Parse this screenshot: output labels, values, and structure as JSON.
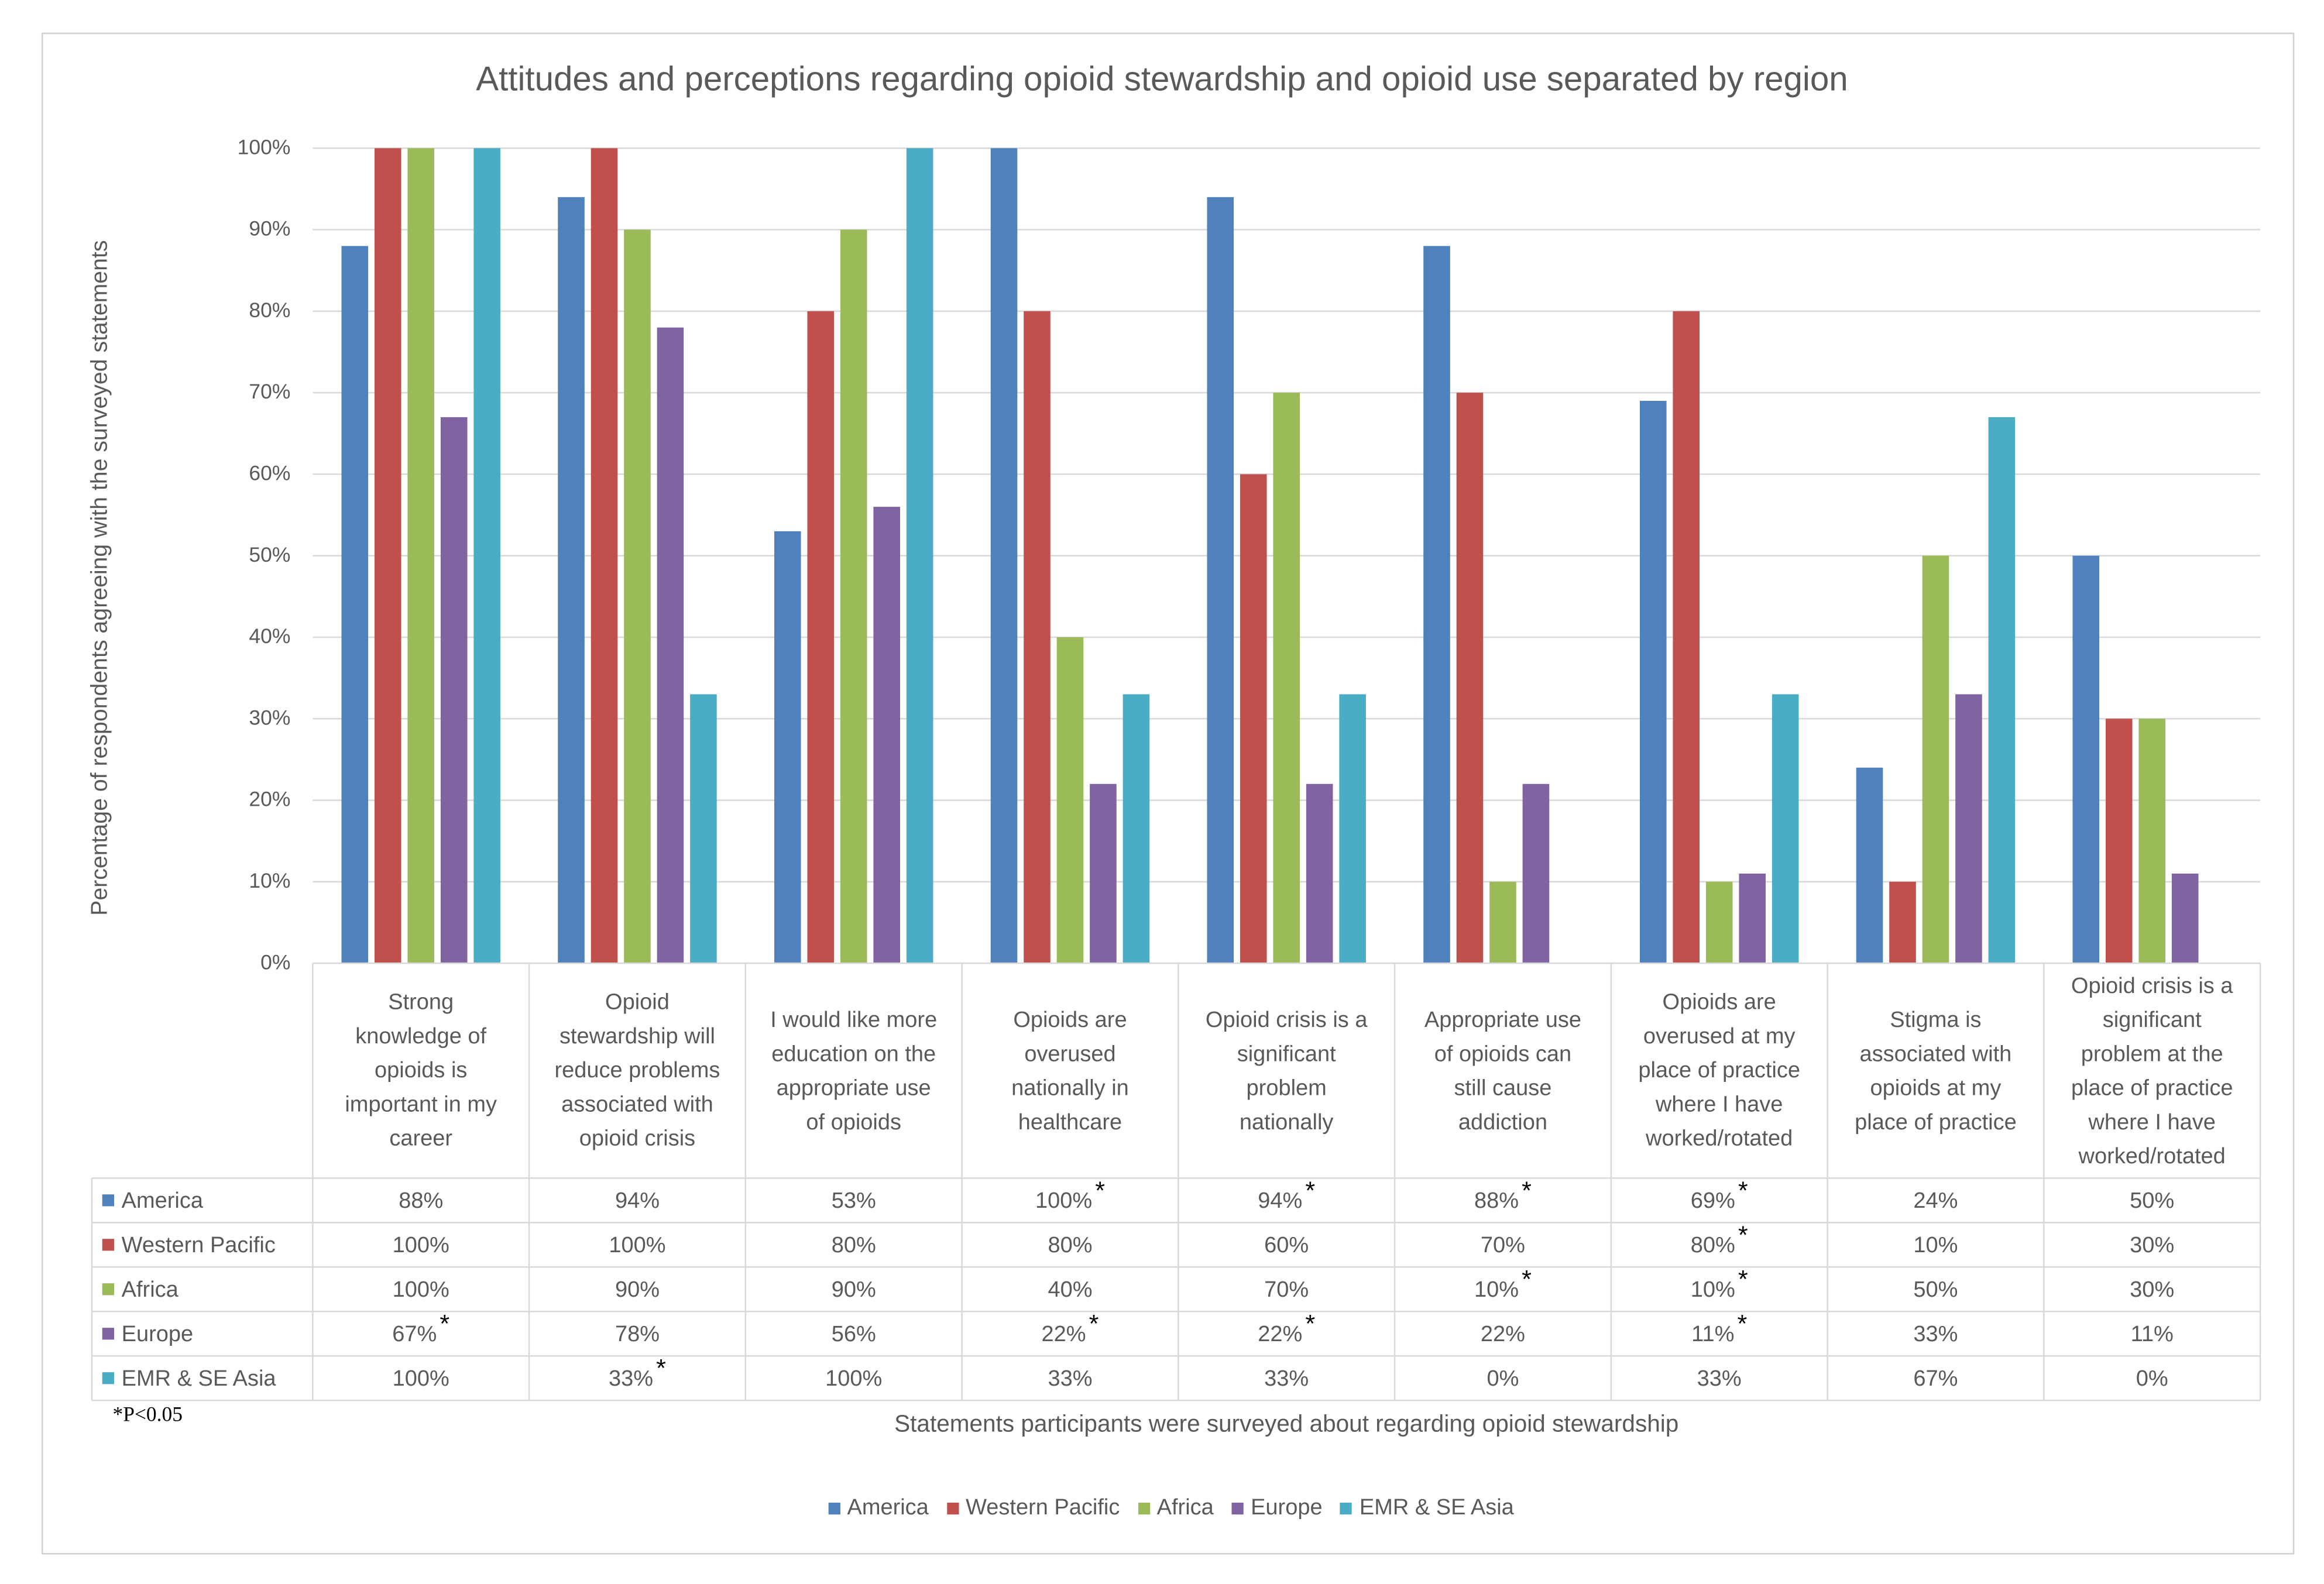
{
  "chart_data": {
    "type": "bar",
    "title": "Attitudes and perceptions regarding opioid stewardship and opioid use separated by region",
    "ylabel": "Percentage of respondents agreeing with the surveyed statements",
    "xlabel": "Statements participants were surveyed about regarding opioid stewardship",
    "ylim": [
      0,
      100
    ],
    "yticks": [
      "0%",
      "10%",
      "20%",
      "30%",
      "40%",
      "50%",
      "60%",
      "70%",
      "80%",
      "90%",
      "100%"
    ],
    "grid": true,
    "legend_position": "bottom",
    "categories": [
      "Strong\nknowledge of\nopioids is\nimportant in my\ncareer",
      "Opioid\nstewardship will\nreduce problems\nassociated with\nopioid crisis",
      "I would like more\neducation on the\nappropriate use\nof opioids",
      "Opioids are\noverused\nnationally in\nhealthcare",
      "Opioid crisis is a\nsignificant\nproblem\nnationally",
      "Appropriate use\nof opioids can\nstill cause\naddiction",
      "Opioids are\noverused at my\nplace of practice\nwhere I have\nworked/rotated",
      "Stigma is\nassociated with\nopioids at my\nplace of practice",
      "Opioid crisis is a\nsignificant\nproblem at the\nplace of practice\nwhere I have\nworked/rotated"
    ],
    "series": [
      {
        "name": "America",
        "color": "#4F81BD",
        "values": [
          88,
          94,
          53,
          100,
          94,
          88,
          69,
          24,
          50
        ],
        "labels": [
          "88%",
          "94%",
          "53%",
          "100%",
          "94%",
          "88%",
          "69%",
          "24%",
          "50%"
        ],
        "significant": [
          false,
          false,
          false,
          true,
          true,
          true,
          true,
          false,
          false
        ]
      },
      {
        "name": "Western Pacific",
        "color": "#C0504D",
        "values": [
          100,
          100,
          80,
          80,
          60,
          70,
          80,
          10,
          30
        ],
        "labels": [
          "100%",
          "100%",
          "80%",
          "80%",
          "60%",
          "70%",
          "80%",
          "10%",
          "30%"
        ],
        "significant": [
          false,
          false,
          false,
          false,
          false,
          false,
          true,
          false,
          false
        ]
      },
      {
        "name": "Africa",
        "color": "#9BBB59",
        "values": [
          100,
          90,
          90,
          40,
          70,
          10,
          10,
          50,
          30
        ],
        "labels": [
          "100%",
          "90%",
          "90%",
          "40%",
          "70%",
          "10%",
          "10%",
          "50%",
          "30%"
        ],
        "significant": [
          false,
          false,
          false,
          false,
          false,
          true,
          true,
          false,
          false
        ]
      },
      {
        "name": "Europe",
        "color": "#8064A2",
        "values": [
          67,
          78,
          56,
          22,
          22,
          22,
          11,
          33,
          11
        ],
        "labels": [
          "67%",
          "78%",
          "56%",
          "22%",
          "22%",
          "22%",
          "11%",
          "33%",
          "11%"
        ],
        "significant": [
          true,
          false,
          false,
          true,
          true,
          false,
          true,
          false,
          false
        ]
      },
      {
        "name": "EMR & SE Asia",
        "color": "#4BACC6",
        "values": [
          100,
          33,
          100,
          33,
          33,
          0,
          33,
          67,
          0
        ],
        "labels": [
          "100%",
          "33%",
          "100%",
          "33%",
          "33%",
          "0%",
          "33%",
          "67%",
          "0%"
        ],
        "significant": [
          false,
          true,
          false,
          false,
          false,
          false,
          false,
          false,
          false
        ]
      }
    ],
    "significance_marker": "*",
    "footnote": "*P<0.05"
  }
}
